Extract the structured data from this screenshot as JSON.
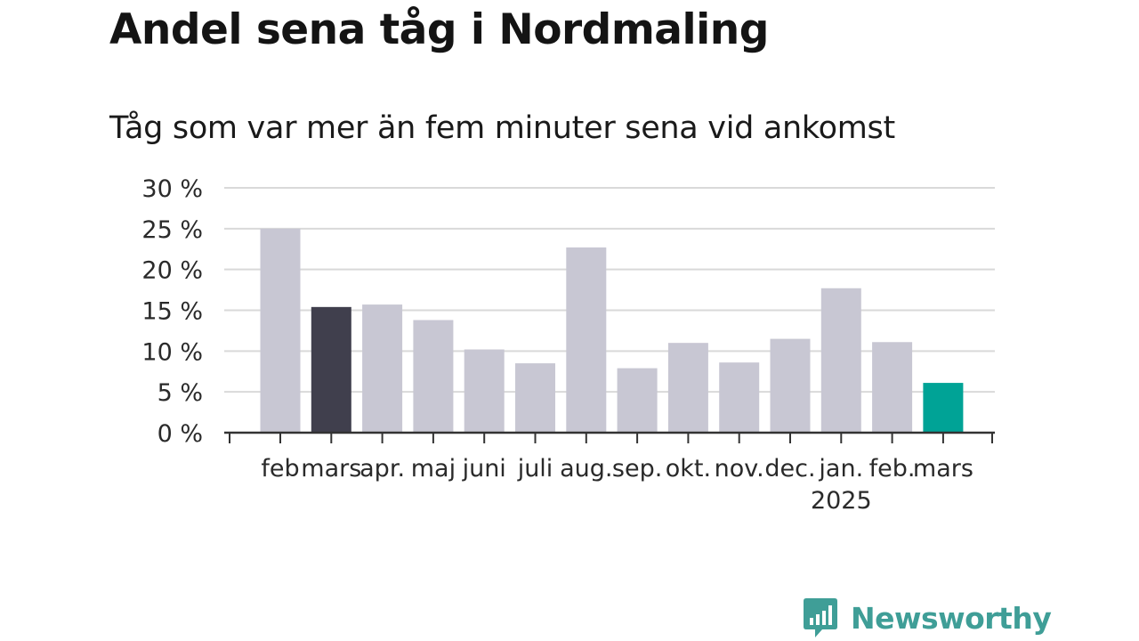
{
  "title": "Andel sena tåg i Nordmaling",
  "subtitle": "Tåg som var mer än fem minuter sena vid ankomst",
  "brand": {
    "name": "Newsworthy",
    "icon": "newsworthy-chart-bubble-icon",
    "color": "#3f9e97"
  },
  "colors": {
    "default_bar": "#c8c7d3",
    "comparison_bar": "#403f4d",
    "latest_bar": "#00a396",
    "gridline": "#d9d9d9",
    "axis": "#333333"
  },
  "chart_data": {
    "type": "bar",
    "categories": [
      "feb",
      "mars",
      "apr.",
      "maj",
      "juni",
      "juli",
      "aug.",
      "sep.",
      "okt.",
      "nov.",
      "dec.",
      "jan.",
      "feb.",
      "mars"
    ],
    "year_labels": [
      {
        "index": 11,
        "label": "2025"
      }
    ],
    "values": [
      25.0,
      15.4,
      15.7,
      13.8,
      10.2,
      8.5,
      22.7,
      7.9,
      11.0,
      8.6,
      11.5,
      17.7,
      11.1,
      6.1
    ],
    "highlight": [
      {
        "index": 1,
        "role": "comparison",
        "color": "#403f4d"
      },
      {
        "index": 13,
        "role": "latest",
        "color": "#00a396"
      }
    ],
    "y_ticks": [
      0,
      5,
      10,
      15,
      20,
      25,
      30
    ],
    "y_tick_labels": [
      "0 %",
      "5 %",
      "10 %",
      "15 %",
      "20 %",
      "25 %",
      "30 %"
    ],
    "ylim": [
      0,
      30
    ],
    "grid": true,
    "legend": "none"
  }
}
